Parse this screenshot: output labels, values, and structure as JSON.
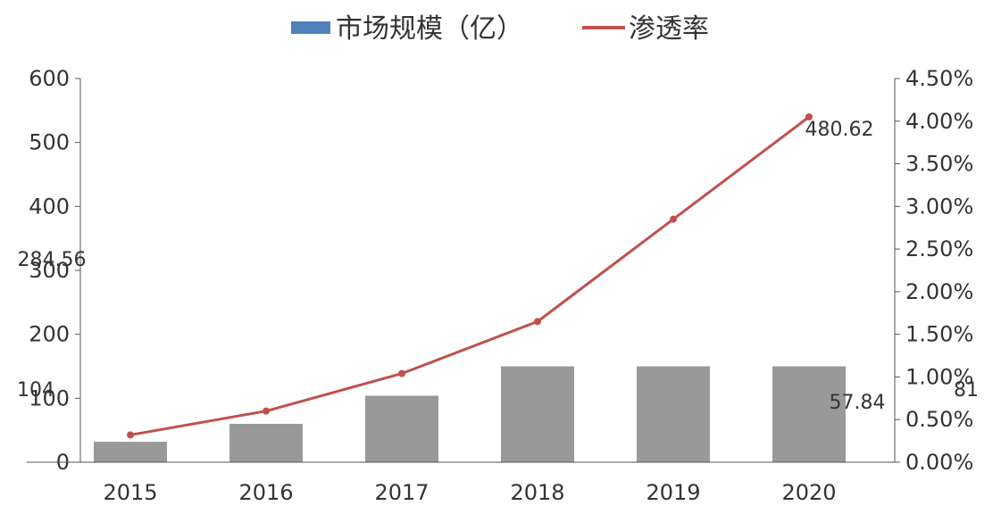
{
  "legend": {
    "bar_label": "市场规模（亿）",
    "line_label": "渗透率"
  },
  "colors": {
    "bar": "#999999",
    "legend_bar": "#4f81bd",
    "line": "#c0504d",
    "axis": "#555555"
  },
  "chart_data": {
    "type": "bar",
    "categories": [
      "2015",
      "2016",
      "2017",
      "2018",
      "2019",
      "2020"
    ],
    "series": [
      {
        "name": "市场规模（亿）",
        "type": "bar",
        "axis": "left",
        "values": [
          32,
          60,
          104,
          150,
          150,
          150
        ]
      },
      {
        "name": "渗透率",
        "type": "line",
        "axis": "right",
        "values": [
          0.0032,
          0.006,
          0.0104,
          0.0165,
          0.0285,
          0.0405
        ]
      }
    ],
    "y_left": {
      "lim": [
        0,
        600
      ],
      "ticks": [
        "0",
        "100",
        "200",
        "300",
        "400",
        "500",
        "600"
      ]
    },
    "y_right": {
      "lim": [
        0,
        0.045
      ],
      "ticks": [
        "0.00%",
        "0.50%",
        "1.00%",
        "1.50%",
        "2.00%",
        "2.50%",
        "3.00%",
        "3.50%",
        "4.00%",
        "4.50%"
      ]
    },
    "data_labels": [
      "284.56",
      "480.62",
      "57.84",
      "104",
      "81"
    ],
    "legend_position": "top-center",
    "grid": false
  }
}
